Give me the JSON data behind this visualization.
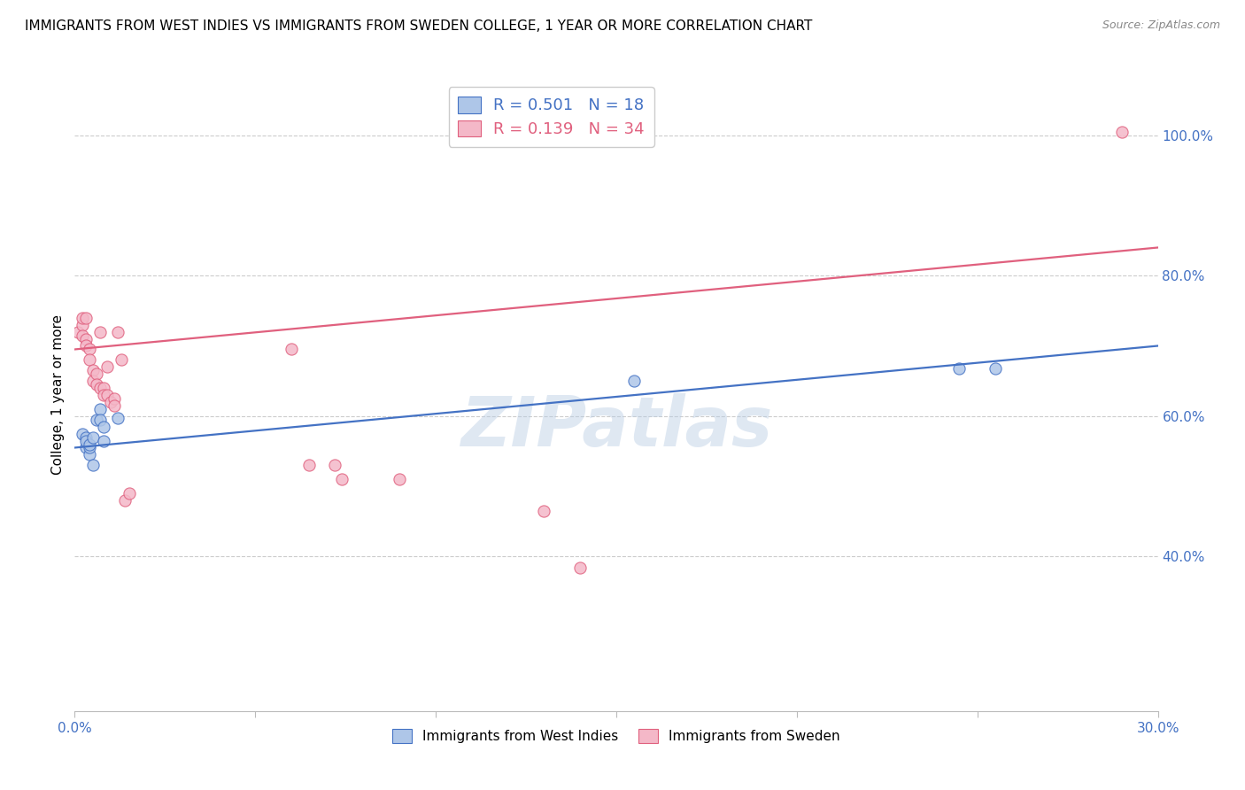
{
  "title": "IMMIGRANTS FROM WEST INDIES VS IMMIGRANTS FROM SWEDEN COLLEGE, 1 YEAR OR MORE CORRELATION CHART",
  "source": "Source: ZipAtlas.com",
  "ylabel": "College, 1 year or more",
  "xmin": 0.0,
  "xmax": 0.3,
  "ymin": 0.18,
  "ymax": 1.08,
  "watermark": "ZIPatlas",
  "blue_points_x": [
    0.002,
    0.003,
    0.003,
    0.003,
    0.004,
    0.004,
    0.004,
    0.005,
    0.005,
    0.006,
    0.007,
    0.007,
    0.008,
    0.008,
    0.012,
    0.155,
    0.245,
    0.255
  ],
  "blue_points_y": [
    0.575,
    0.555,
    0.57,
    0.565,
    0.545,
    0.555,
    0.56,
    0.53,
    0.57,
    0.595,
    0.61,
    0.595,
    0.585,
    0.565,
    0.597,
    0.65,
    0.668,
    0.668
  ],
  "pink_points_x": [
    0.001,
    0.002,
    0.002,
    0.002,
    0.003,
    0.003,
    0.003,
    0.004,
    0.004,
    0.005,
    0.005,
    0.006,
    0.006,
    0.007,
    0.007,
    0.008,
    0.008,
    0.009,
    0.009,
    0.01,
    0.011,
    0.011,
    0.012,
    0.013,
    0.014,
    0.015,
    0.06,
    0.065,
    0.072,
    0.074,
    0.09,
    0.13,
    0.14,
    0.29
  ],
  "pink_points_y": [
    0.72,
    0.73,
    0.715,
    0.74,
    0.71,
    0.7,
    0.74,
    0.695,
    0.68,
    0.665,
    0.65,
    0.66,
    0.645,
    0.64,
    0.72,
    0.64,
    0.63,
    0.63,
    0.67,
    0.62,
    0.625,
    0.615,
    0.72,
    0.68,
    0.48,
    0.49,
    0.695,
    0.53,
    0.53,
    0.51,
    0.51,
    0.465,
    0.384,
    1.005
  ],
  "blue_R": 0.501,
  "blue_N": 18,
  "pink_R": 0.139,
  "pink_N": 34,
  "blue_line_x": [
    0.0,
    0.3
  ],
  "blue_line_y": [
    0.555,
    0.7
  ],
  "pink_line_x": [
    0.0,
    0.3
  ],
  "pink_line_y": [
    0.695,
    0.84
  ],
  "blue_color": "#aec6e8",
  "blue_line_color": "#4472c4",
  "pink_color": "#f4b8c8",
  "pink_line_color": "#e0607e",
  "legend_label_blue": "Immigrants from West Indies",
  "legend_label_pink": "Immigrants from Sweden",
  "x_tick_vals": [
    0.0,
    0.05,
    0.1,
    0.15,
    0.2,
    0.25,
    0.3
  ],
  "x_tick_labels_show": [
    "0.0%",
    "",
    "",
    "",
    "",
    "",
    "30.0%"
  ],
  "y_tick_vals": [
    0.4,
    0.6,
    0.8,
    1.0
  ],
  "y_tick_labels": [
    "40.0%",
    "60.0%",
    "80.0%",
    "100.0%"
  ],
  "blue_marker_size": 90,
  "pink_marker_size": 90
}
